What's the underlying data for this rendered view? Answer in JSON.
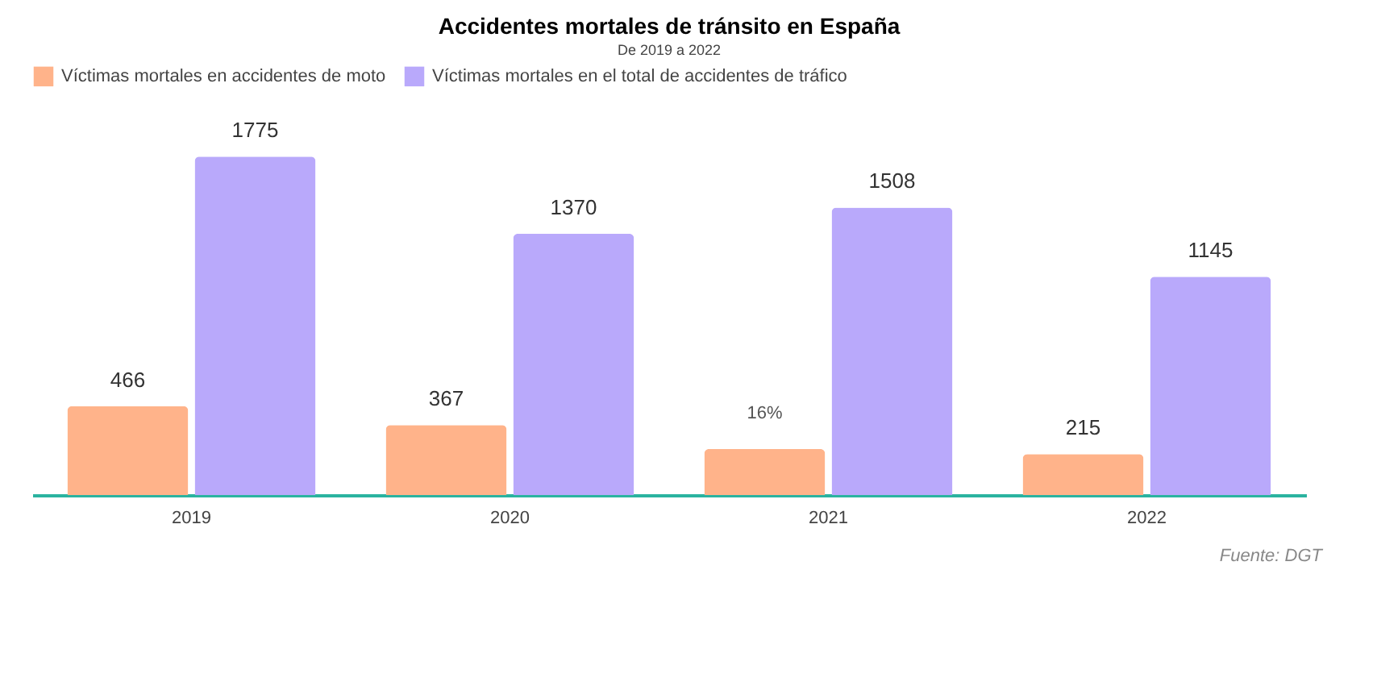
{
  "chart_data": {
    "type": "bar",
    "title": "Accidentes mortales de tránsito en España",
    "subtitle": "De 2019 a 2022",
    "categories": [
      "2019",
      "2020",
      "2021",
      "2022"
    ],
    "series": [
      {
        "name": "Víctimas mortales en accidentes de moto",
        "color": "#ffb38a",
        "values": [
          466,
          367,
          241,
          215
        ],
        "value_labels": [
          "466",
          "367",
          null,
          "215"
        ]
      },
      {
        "name": "Víctimas mortales en el total de accidentes de tráfico",
        "color": "#b9a9fb",
        "values": [
          1775,
          1370,
          1508,
          1145
        ],
        "value_labels": [
          "1775",
          "1370",
          "1508",
          "1145"
        ]
      }
    ],
    "legend": "top",
    "grid": false,
    "annotations": [
      {
        "text": "16%",
        "x": "2021",
        "y": 241
      },
      "Fuente: DGT"
    ]
  }
}
